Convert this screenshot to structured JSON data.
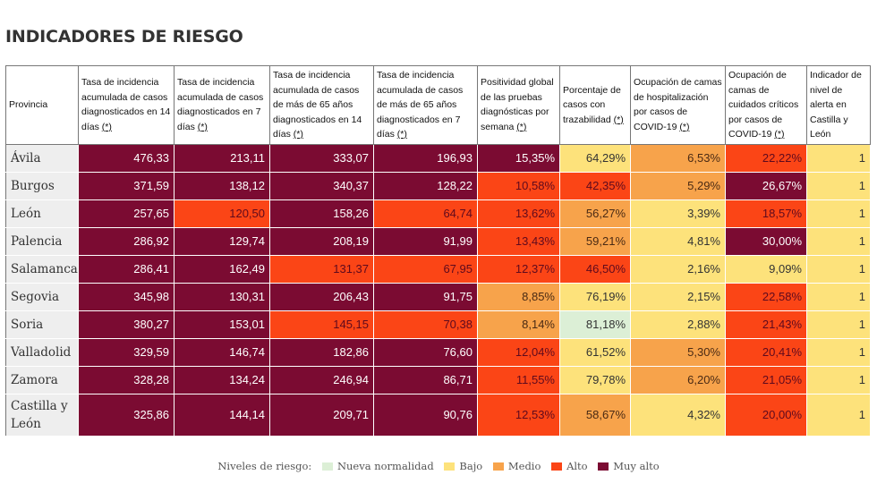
{
  "title": "INDICADORES DE RIESGO",
  "headers": [
    "Provincia",
    "Tasa de incidencia acumulada de casos diagnosticados en 14 días",
    "Tasa de incidencia acumulada de casos diagnosticados en 7 días",
    "Tasa de incidencia acumulada de casos de más de 65 años diagnosticados en 14 días",
    "Tasa de incidencia acumulada de casos de más de 65 años diagnosticados en 7 días",
    "Positividad global de las pruebas diagnósticas por semana",
    "Porcentaje de casos con trazabilidad",
    "Ocupación de camas de hospitalización por casos de COVID-19",
    "Ocupación de camas de cuidados críticos por casos de COVID-19",
    "Indicador de nivel de alerta en Castilla y León"
  ],
  "footnote_marker": "(*)",
  "rows": [
    {
      "provincia": "Ávila",
      "values": [
        "476,33",
        "213,11",
        "333,07",
        "196,93",
        "15,35%",
        "64,29%",
        "6,53%",
        "22,22%",
        "1"
      ],
      "levels": [
        "muyalto",
        "muyalto",
        "muyalto",
        "muyalto",
        "muyalto",
        "bajo",
        "medio",
        "alto",
        "bajo"
      ]
    },
    {
      "provincia": "Burgos",
      "values": [
        "371,59",
        "138,12",
        "340,37",
        "128,22",
        "10,58%",
        "42,35%",
        "5,29%",
        "26,67%",
        "1"
      ],
      "levels": [
        "muyalto",
        "muyalto",
        "muyalto",
        "muyalto",
        "alto",
        "alto",
        "medio",
        "muyalto",
        "bajo"
      ]
    },
    {
      "provincia": "León",
      "values": [
        "257,65",
        "120,50",
        "158,26",
        "64,74",
        "13,62%",
        "56,27%",
        "3,39%",
        "18,57%",
        "1"
      ],
      "levels": [
        "muyalto",
        "alto",
        "muyalto",
        "alto",
        "alto",
        "medio",
        "bajo",
        "alto",
        "bajo"
      ]
    },
    {
      "provincia": "Palencia",
      "values": [
        "286,92",
        "129,74",
        "208,19",
        "91,99",
        "13,43%",
        "59,21%",
        "4,81%",
        "30,00%",
        "1"
      ],
      "levels": [
        "muyalto",
        "muyalto",
        "muyalto",
        "muyalto",
        "alto",
        "medio",
        "bajo",
        "muyalto",
        "bajo"
      ]
    },
    {
      "provincia": "Salamanca",
      "values": [
        "286,41",
        "162,49",
        "131,37",
        "67,95",
        "12,37%",
        "46,50%",
        "2,16%",
        "9,09%",
        "1"
      ],
      "levels": [
        "muyalto",
        "muyalto",
        "alto",
        "alto",
        "alto",
        "alto",
        "bajo",
        "bajo",
        "bajo"
      ]
    },
    {
      "provincia": "Segovia",
      "values": [
        "345,98",
        "130,31",
        "206,43",
        "91,75",
        "8,85%",
        "76,19%",
        "2,15%",
        "22,58%",
        "1"
      ],
      "levels": [
        "muyalto",
        "muyalto",
        "muyalto",
        "muyalto",
        "medio",
        "bajo",
        "bajo",
        "alto",
        "bajo"
      ]
    },
    {
      "provincia": "Soria",
      "values": [
        "380,27",
        "153,01",
        "145,15",
        "70,38",
        "8,14%",
        "81,18%",
        "2,88%",
        "21,43%",
        "1"
      ],
      "levels": [
        "muyalto",
        "muyalto",
        "alto",
        "alto",
        "medio",
        "nueva",
        "bajo",
        "alto",
        "bajo"
      ]
    },
    {
      "provincia": "Valladolid",
      "values": [
        "329,59",
        "146,74",
        "182,86",
        "76,60",
        "12,04%",
        "61,52%",
        "5,30%",
        "20,41%",
        "1"
      ],
      "levels": [
        "muyalto",
        "muyalto",
        "muyalto",
        "muyalto",
        "alto",
        "bajo",
        "medio",
        "alto",
        "bajo"
      ]
    },
    {
      "provincia": "Zamora",
      "values": [
        "328,28",
        "134,24",
        "246,94",
        "86,71",
        "11,55%",
        "79,78%",
        "6,20%",
        "21,05%",
        "1"
      ],
      "levels": [
        "muyalto",
        "muyalto",
        "muyalto",
        "muyalto",
        "alto",
        "bajo",
        "medio",
        "alto",
        "bajo"
      ]
    },
    {
      "provincia": "Castilla y León",
      "values": [
        "325,86",
        "144,14",
        "209,71",
        "90,76",
        "12,53%",
        "58,67%",
        "4,32%",
        "20,00%",
        "1"
      ],
      "levels": [
        "muyalto",
        "muyalto",
        "muyalto",
        "muyalto",
        "alto",
        "medio",
        "bajo",
        "alto",
        "bajo"
      ]
    }
  ],
  "legend": {
    "label": "Niveles de riesgo:",
    "items": [
      {
        "key": "nueva",
        "label": "Nueva normalidad",
        "color": "#dcefd6"
      },
      {
        "key": "bajo",
        "label": "Bajo",
        "color": "#fde27b"
      },
      {
        "key": "medio",
        "label": "Medio",
        "color": "#f7a34b"
      },
      {
        "key": "alto",
        "label": "Alto",
        "color": "#fb4516"
      },
      {
        "key": "muyalto",
        "label": "Muy alto",
        "color": "#7b0b32"
      }
    ]
  }
}
